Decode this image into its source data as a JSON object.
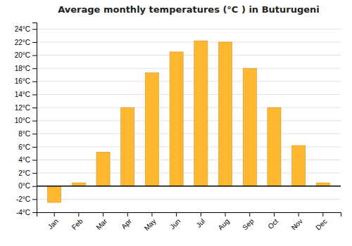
{
  "chart_data": {
    "type": "bar",
    "title": "Average monthly temperatures (°C ) in Buturugeni",
    "categories": [
      "Jan",
      "Feb",
      "Mar",
      "Apr",
      "May",
      "Jun",
      "Jul",
      "Aug",
      "Sep",
      "Oct",
      "Nov",
      "Dec"
    ],
    "values": [
      -2.5,
      0.5,
      5.2,
      12.0,
      17.3,
      20.5,
      22.2,
      22.0,
      18.0,
      12.0,
      6.2,
      0.5
    ],
    "color": "#FFB830",
    "ylim": [
      -4,
      25
    ],
    "yticks": [
      {
        "value": -4,
        "label": "-4°C"
      },
      {
        "value": -2,
        "label": "-2°C"
      },
      {
        "value": 0,
        "label": "0°C"
      },
      {
        "value": 2,
        "label": "2°C"
      },
      {
        "value": 4,
        "label": "4°C"
      },
      {
        "value": 6,
        "label": "6°C"
      },
      {
        "value": 8,
        "label": "8°C"
      },
      {
        "value": 10,
        "label": "10°C"
      },
      {
        "value": 12,
        "label": "12°C"
      },
      {
        "value": 14,
        "label": "14°C"
      },
      {
        "value": 16,
        "label": "16°C"
      },
      {
        "value": 18,
        "label": "18°C"
      },
      {
        "value": 20,
        "label": "20°C"
      },
      {
        "value": 22,
        "label": "22°C"
      },
      {
        "value": 24,
        "label": "24°C"
      }
    ],
    "grid": true
  }
}
